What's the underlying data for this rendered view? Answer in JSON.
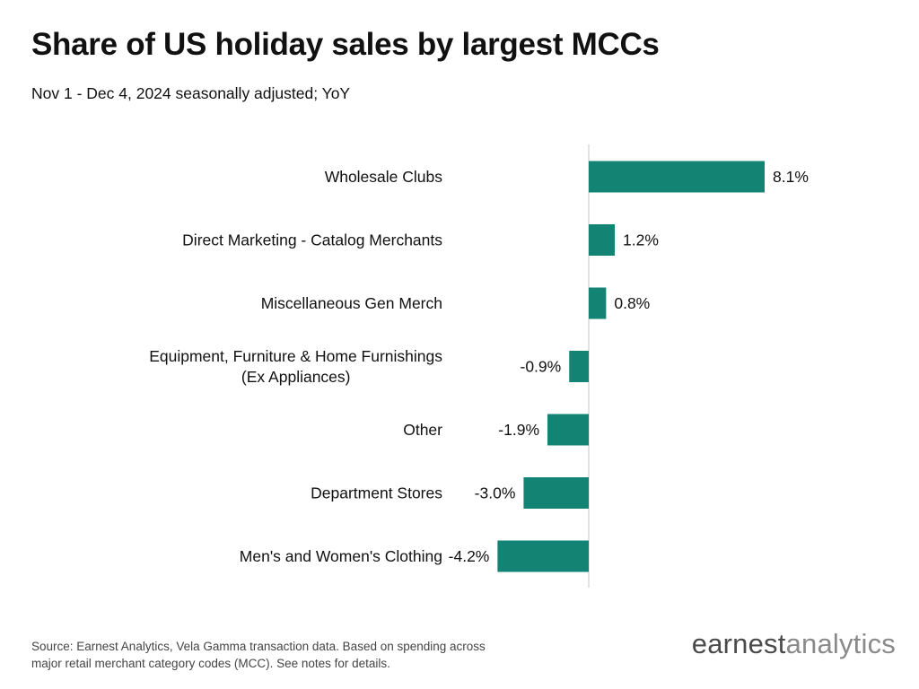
{
  "chart_data": {
    "type": "bar",
    "orientation": "horizontal",
    "title": "Share of US holiday sales by largest MCCs",
    "subtitle": "Nov 1 - Dec 4, 2024 seasonally adjusted; YoY",
    "categories": [
      [
        "Wholesale Clubs"
      ],
      [
        "Direct Marketing - Catalog Merchants"
      ],
      [
        "Miscellaneous Gen Merch"
      ],
      [
        "Equipment, Furniture & Home Furnishings",
        "(Ex Appliances)"
      ],
      [
        "Other"
      ],
      [
        "Department Stores"
      ],
      [
        "Men's and Women's Clothing"
      ]
    ],
    "values": [
      8.1,
      1.2,
      0.8,
      -0.9,
      -1.9,
      -3.0,
      -4.2
    ],
    "value_labels": [
      "8.1%",
      "1.2%",
      "0.8%",
      "-0.9%",
      "-1.9%",
      "-3.0%",
      "-4.2%"
    ],
    "bar_color": "#138473",
    "axis_color": "#d9d9d9",
    "grid": false,
    "legend": "none"
  },
  "footer": {
    "source_lines": [
      "Source: Earnest Analytics, Vela Gamma transaction data. Based on spending across",
      "major retail merchant category codes (MCC). See notes for details."
    ]
  },
  "logo": {
    "brand": "earnest",
    "suffix": "analytics"
  }
}
